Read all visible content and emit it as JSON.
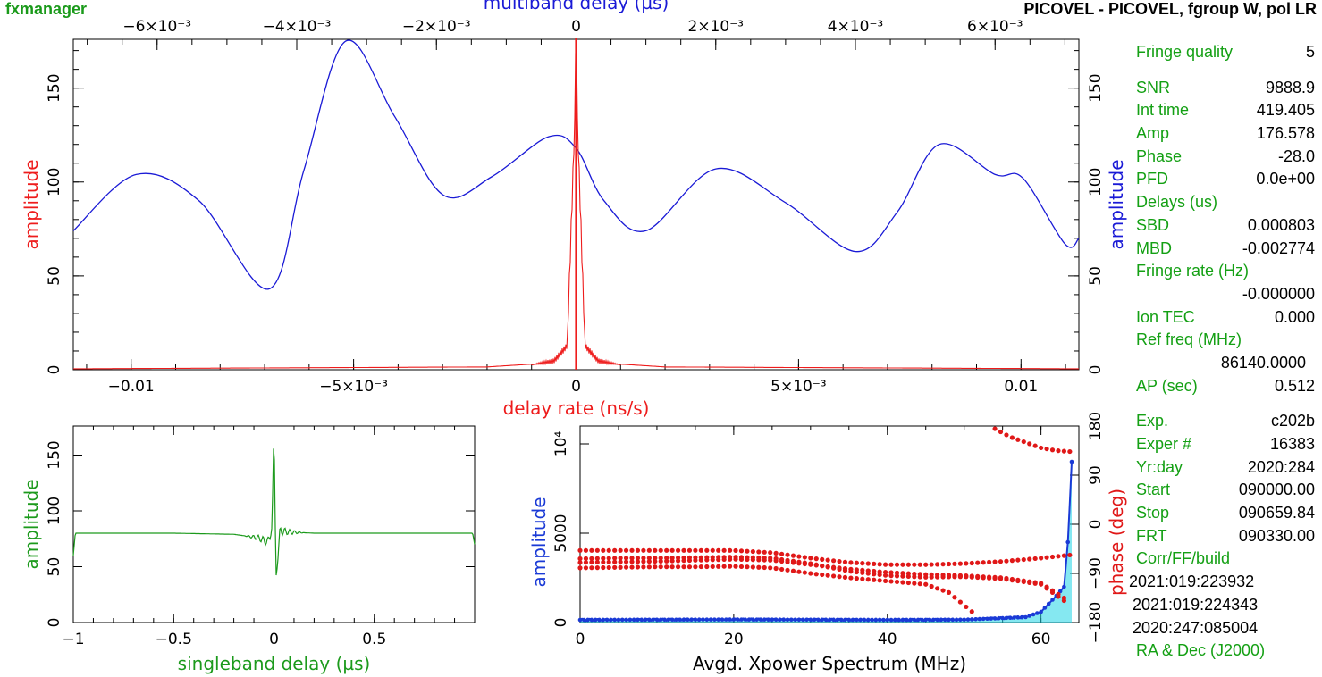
{
  "header": {
    "app_title": "fxmanager",
    "plot_title": "PICOVEL - PICOVEL, fgroup W, pol LR"
  },
  "colors": {
    "delay_rate": "#ee1c1c",
    "multiband": "#1a1ad6",
    "singleband": "#1c9a1c",
    "xpower_amp": "#1a3ad6",
    "xpower_phase": "#e01818",
    "xpower_fill": "#20d6e6",
    "info_label": "#14a014"
  },
  "info_panel": {
    "fringe_quality_label": "Fringe quality",
    "fringe_quality_value": "5",
    "snr_label": "SNR",
    "snr_value": "9888.9",
    "int_time_label": "Int time",
    "int_time_value": "419.405",
    "amp_label": "Amp",
    "amp_value": "176.578",
    "phase_label": "Phase",
    "phase_value": "-28.0",
    "pfd_label": "PFD",
    "pfd_value": "0.0e+00",
    "delays_label": "Delays (us)",
    "sbd_label": "SBD",
    "sbd_value": "0.000803",
    "mbd_label": "MBD",
    "mbd_value": "-0.002774",
    "fringe_rate_label": "Fringe rate (Hz)",
    "fringe_rate_value": "-0.000000",
    "ion_tec_label": "Ion TEC",
    "ion_tec_value": "0.000",
    "ref_freq_label": "Ref freq (MHz)",
    "ref_freq_value": "86140.0000",
    "ap_label": "AP (sec)",
    "ap_value": "0.512",
    "exp_label": "Exp.",
    "exp_value": "c202b",
    "exper_num_label": "Exper #",
    "exper_num_value": "16383",
    "yrday_label": "Yr:day",
    "yrday_value": "2020:284",
    "start_label": "Start",
    "start_value": "090000.00",
    "stop_label": "Stop",
    "stop_value": "090659.84",
    "frt_label": "FRT",
    "frt_value": "090330.00",
    "corr_label": "Corr/FF/build",
    "corr_value": "2021:019:223932",
    "ff_value": "2021:019:224343",
    "build_value": "2020:247:085004",
    "radec_label": "RA & Dec (J2000)"
  },
  "chart_data": [
    {
      "id": "delay_rate",
      "type": "line",
      "xlabel": "delay rate (ns/s)",
      "ylabel": "amplitude",
      "xlim": [
        -0.0113,
        0.0113
      ],
      "ylim": [
        0,
        176
      ],
      "x_ticks": [
        "−0.01",
        "−5×10⁻³",
        "0",
        "5×10⁻³",
        "0.01"
      ],
      "x_tick_values": [
        -0.01,
        -0.005,
        0,
        0.005,
        0.01
      ],
      "y_ticks": [
        "0",
        "50",
        "100",
        "150"
      ],
      "y_tick_values": [
        0,
        50,
        100,
        150
      ],
      "peak": {
        "x": 0,
        "y": 176.6
      },
      "series": [
        {
          "x": [
            -0.0113,
            -0.002,
            -0.001,
            -0.0005,
            -0.0002,
            0,
            0.0002,
            0.0005,
            0.001,
            0.002,
            0.0113
          ],
          "y": [
            0.5,
            1.5,
            3,
            6,
            15,
            176.6,
            15,
            6,
            3,
            1.5,
            0.5
          ]
        }
      ]
    },
    {
      "id": "multiband_delay",
      "type": "line",
      "xlabel": "multiband delay (µs)",
      "ylabel": "amplitude",
      "xlim": [
        -0.0072,
        0.0072
      ],
      "ylim": [
        0,
        176
      ],
      "x_ticks": [
        "−6×10⁻³",
        "−4×10⁻³",
        "−2×10⁻³",
        "0",
        "2×10⁻³",
        "4×10⁻³",
        "6×10⁻³"
      ],
      "x_tick_values": [
        -0.006,
        -0.004,
        -0.002,
        0,
        0.002,
        0.004,
        0.006
      ],
      "y_ticks": [
        "0",
        "50",
        "100",
        "150"
      ],
      "y_tick_values": [
        0,
        50,
        100,
        150
      ],
      "series": [
        {
          "x": [
            -0.0072,
            -0.0063,
            -0.0054,
            -0.0044,
            -0.0039,
            -0.0033,
            -0.0026,
            -0.0019,
            -0.0012,
            -0.0004,
            0.0,
            0.0004,
            0.001,
            0.002,
            0.003,
            0.004,
            0.0046,
            0.0052,
            0.006,
            0.0064,
            0.007,
            0.0072
          ],
          "y": [
            74,
            104,
            90,
            43,
            106,
            175,
            135,
            93,
            103,
            124,
            118,
            90,
            74,
            107,
            89,
            63,
            84,
            120,
            104,
            102,
            67,
            70
          ]
        }
      ]
    },
    {
      "id": "singleband_delay",
      "type": "line",
      "xlabel": "singleband delay (µs)",
      "ylabel": "amplitude",
      "xlim": [
        -1,
        1
      ],
      "ylim": [
        0,
        176
      ],
      "x_ticks": [
        "−1",
        "−0.5",
        "0",
        "0.5"
      ],
      "x_tick_values": [
        -1,
        -0.5,
        0,
        0.5
      ],
      "y_ticks": [
        "0",
        "50",
        "100",
        "150"
      ],
      "y_tick_values": [
        0,
        50,
        100,
        150
      ],
      "series": [
        {
          "x": [
            -1,
            -0.99,
            -0.9,
            -0.5,
            -0.2,
            -0.08,
            -0.03,
            -0.01,
            0.0,
            0.01,
            0.03,
            0.08,
            0.2,
            0.5,
            0.9,
            0.99,
            1
          ],
          "y": [
            60,
            80,
            80,
            80,
            79,
            76,
            72,
            85,
            176,
            40,
            82,
            81,
            80,
            80,
            80,
            80,
            70
          ]
        }
      ]
    },
    {
      "id": "xpower_spectrum",
      "type": "scatter",
      "xlabel": "Avgd. Xpower Spectrum (MHz)",
      "ylabel": "amplitude",
      "ylabel_right": "phase (deg)",
      "xlim": [
        0,
        64
      ],
      "ylim": [
        0,
        11000
      ],
      "ylim_right": [
        -180,
        180
      ],
      "x_ticks": [
        "0",
        "20",
        "40",
        "60"
      ],
      "x_tick_values": [
        0,
        20,
        40,
        60
      ],
      "y_ticks": [
        "0",
        "5000",
        "10⁴"
      ],
      "y_tick_values": [
        0,
        5000,
        10000
      ],
      "y_ticks_right": [
        "−180",
        "−90",
        "0",
        "90",
        "180"
      ],
      "y_tick_values_right": [
        -180,
        -90,
        0,
        90,
        180
      ],
      "amplitude_series": {
        "x": [
          0,
          10,
          20,
          30,
          40,
          50,
          58,
          60,
          62,
          63,
          63.5,
          64
        ],
        "y": [
          150,
          160,
          170,
          160,
          150,
          160,
          300,
          600,
          1500,
          2000,
          4500,
          9000
        ]
      },
      "phase_series": [
        {
          "x": [
            0,
            5,
            10,
            15,
            20,
            25,
            30,
            35,
            40,
            45,
            50,
            55,
            60,
            64
          ],
          "y": [
            -48,
            -48,
            -48,
            -48,
            -48,
            -52,
            -62,
            -70,
            -74,
            -74,
            -72,
            -68,
            -62,
            -56
          ]
        },
        {
          "x": [
            0,
            5,
            10,
            15,
            20,
            25,
            30,
            35,
            40,
            45,
            50,
            55,
            60,
            63
          ],
          "y": [
            -63,
            -62,
            -62,
            -61,
            -60,
            -62,
            -72,
            -86,
            -94,
            -97,
            -96,
            -100,
            -110,
            -140
          ]
        },
        {
          "x": [
            0,
            5,
            10,
            15,
            20,
            25,
            30,
            35,
            40,
            45,
            50,
            55,
            60,
            63
          ],
          "y": [
            -70,
            -69,
            -68,
            -66,
            -64,
            -66,
            -74,
            -82,
            -88,
            -92,
            -94,
            -98,
            -108,
            -135
          ]
        },
        {
          "x": [
            0,
            5,
            10,
            15,
            20,
            25,
            30,
            35,
            40,
            45,
            48,
            51
          ],
          "y": [
            -80,
            -79,
            -78,
            -78,
            -77,
            -80,
            -90,
            -98,
            -104,
            -110,
            -125,
            -160
          ]
        },
        {
          "x": [
            54,
            56,
            58,
            60,
            62,
            64
          ],
          "y": [
            175,
            160,
            150,
            140,
            135,
            133
          ]
        }
      ]
    }
  ]
}
